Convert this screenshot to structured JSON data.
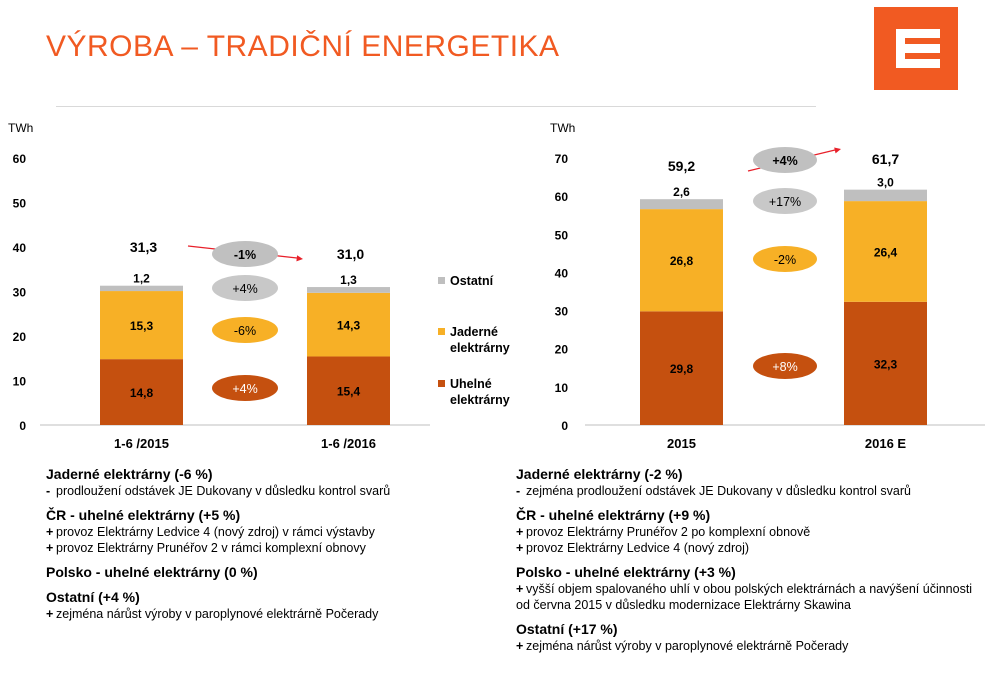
{
  "title": "VÝROBA – TRADIČNÍ ENERGETIKA",
  "colors": {
    "accent": "#f15a22",
    "coal": "#c5500f",
    "nuclear": "#f7b026",
    "other": "#bfbfbf",
    "arrow": "#e8202a"
  },
  "chart_data": [
    {
      "type": "bar",
      "stacked": true,
      "unit": "TWh",
      "ylim": [
        0,
        60
      ],
      "yticks": [
        "0",
        "10",
        "20",
        "30",
        "40",
        "50",
        "60"
      ],
      "categories": [
        "1-6 /2015",
        "1-6 /2016"
      ],
      "series": [
        {
          "name": "Uhelné elektrárny",
          "values": [
            14.8,
            15.4
          ],
          "labels": [
            "14,8",
            "15,4"
          ]
        },
        {
          "name": "Jaderné elektrárny",
          "values": [
            15.3,
            14.3
          ],
          "labels": [
            "15,3",
            "14,3"
          ]
        },
        {
          "name": "Ostatní",
          "values": [
            1.2,
            1.3
          ],
          "labels": [
            "1,2",
            "1,3"
          ]
        }
      ],
      "totals": [
        "31,3",
        "31,0"
      ],
      "changes": {
        "total": "-1%",
        "other": "+4%",
        "nuclear": "-6%",
        "coal": "+4%"
      },
      "legend": [
        "Ostatní",
        "Jaderné elektrárny",
        "Uhelné elektrárny"
      ],
      "legend_position": "right"
    },
    {
      "type": "bar",
      "stacked": true,
      "unit": "TWh",
      "ylim": [
        0,
        70
      ],
      "yticks": [
        "0",
        "10",
        "20",
        "30",
        "40",
        "50",
        "60",
        "70"
      ],
      "categories": [
        "2015",
        "2016 E"
      ],
      "series": [
        {
          "name": "Uhelné elektrárny",
          "values": [
            29.8,
            32.3
          ],
          "labels": [
            "29,8",
            "32,3"
          ]
        },
        {
          "name": "Jaderné elektrárny",
          "values": [
            26.8,
            26.4
          ],
          "labels": [
            "26,8",
            "26,4"
          ]
        },
        {
          "name": "Ostatní",
          "values": [
            2.6,
            3.0
          ],
          "labels": [
            "2,6",
            "3,0"
          ]
        }
      ],
      "totals": [
        "59,2",
        "61,7"
      ],
      "changes": {
        "total": "+4%",
        "other": "+17%",
        "nuclear": "-2%",
        "coal": "+8%"
      }
    }
  ],
  "notes_left": [
    {
      "title": "Jaderné elektrárny (-6 %)",
      "items": [
        {
          "marker": "-",
          "text": "prodloužení odstávek JE Dukovany v důsledku kontrol svarů"
        }
      ]
    },
    {
      "title": "ČR - uhelné elektrárny (+5 %)",
      "items": [
        {
          "marker": "+",
          "text": "provoz Elektrárny Ledvice 4 (nový zdroj) v rámci výstavby"
        },
        {
          "marker": "+",
          "text": "provoz Elektrárny Prunéřov 2 v rámci komplexní obnovy"
        }
      ]
    },
    {
      "title": "Polsko - uhelné elektrárny (0 %)",
      "items": []
    },
    {
      "title": "Ostatní (+4 %)",
      "items": [
        {
          "marker": "+",
          "text": "zejména nárůst výroby v paroplynové elektrárně Počerady"
        }
      ]
    }
  ],
  "notes_right": [
    {
      "title": "Jaderné elektrárny (-2 %)",
      "items": [
        {
          "marker": "-",
          "text": "zejména prodloužení odstávek JE Dukovany v důsledku kontrol svarů"
        }
      ]
    },
    {
      "title": "ČR - uhelné elektrárny (+9 %)",
      "items": [
        {
          "marker": "+",
          "text": "provoz Elektrárny Prunéřov 2 po komplexní obnově"
        },
        {
          "marker": "+",
          "text": "provoz Elektrárny Ledvice 4 (nový zdroj)"
        }
      ]
    },
    {
      "title": "Polsko - uhelné elektrárny (+3 %)",
      "items": [
        {
          "marker": "+",
          "text": "vyšší objem spalovaného uhlí v obou polských elektrárnách a navýšení účinnosti od června 2015 v důsledku modernizace Elektrárny Skawina"
        }
      ]
    },
    {
      "title": "Ostatní (+17 %)",
      "items": [
        {
          "marker": "+",
          "text": "zejména nárůst výroby v paroplynové elektrárně Počerady"
        }
      ]
    }
  ]
}
